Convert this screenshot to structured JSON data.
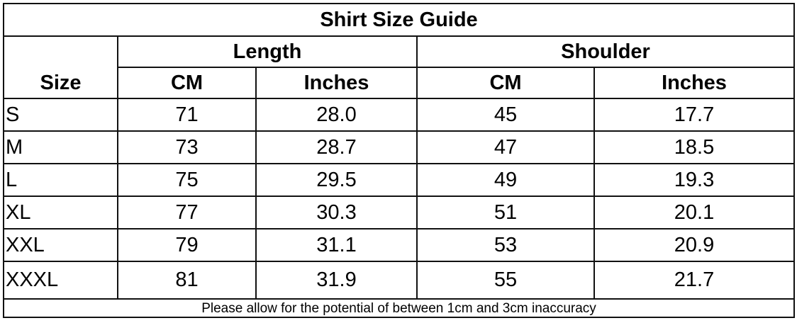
{
  "title": "Shirt Size Guide",
  "headers": {
    "size": "Size",
    "length": "Length",
    "shoulder": "Shoulder",
    "length_cm": "CM",
    "length_in": "Inches",
    "shoulder_cm": "CM",
    "shoulder_in": "Inches"
  },
  "rows": [
    [
      "S",
      "71",
      "28.0",
      "45",
      "17.7"
    ],
    [
      "M",
      "73",
      "28.7",
      "47",
      "18.5"
    ],
    [
      "L",
      "75",
      "29.5",
      "49",
      "19.3"
    ],
    [
      "XL",
      "77",
      "30.3",
      "51",
      "20.1"
    ],
    [
      "XXL",
      "79",
      "31.1",
      "53",
      "20.9"
    ],
    [
      "XXXL",
      "81",
      "31.9",
      "55",
      "21.7"
    ]
  ],
  "footer": "Please allow for the potential of between 1cm and 3cm inaccuracy"
}
